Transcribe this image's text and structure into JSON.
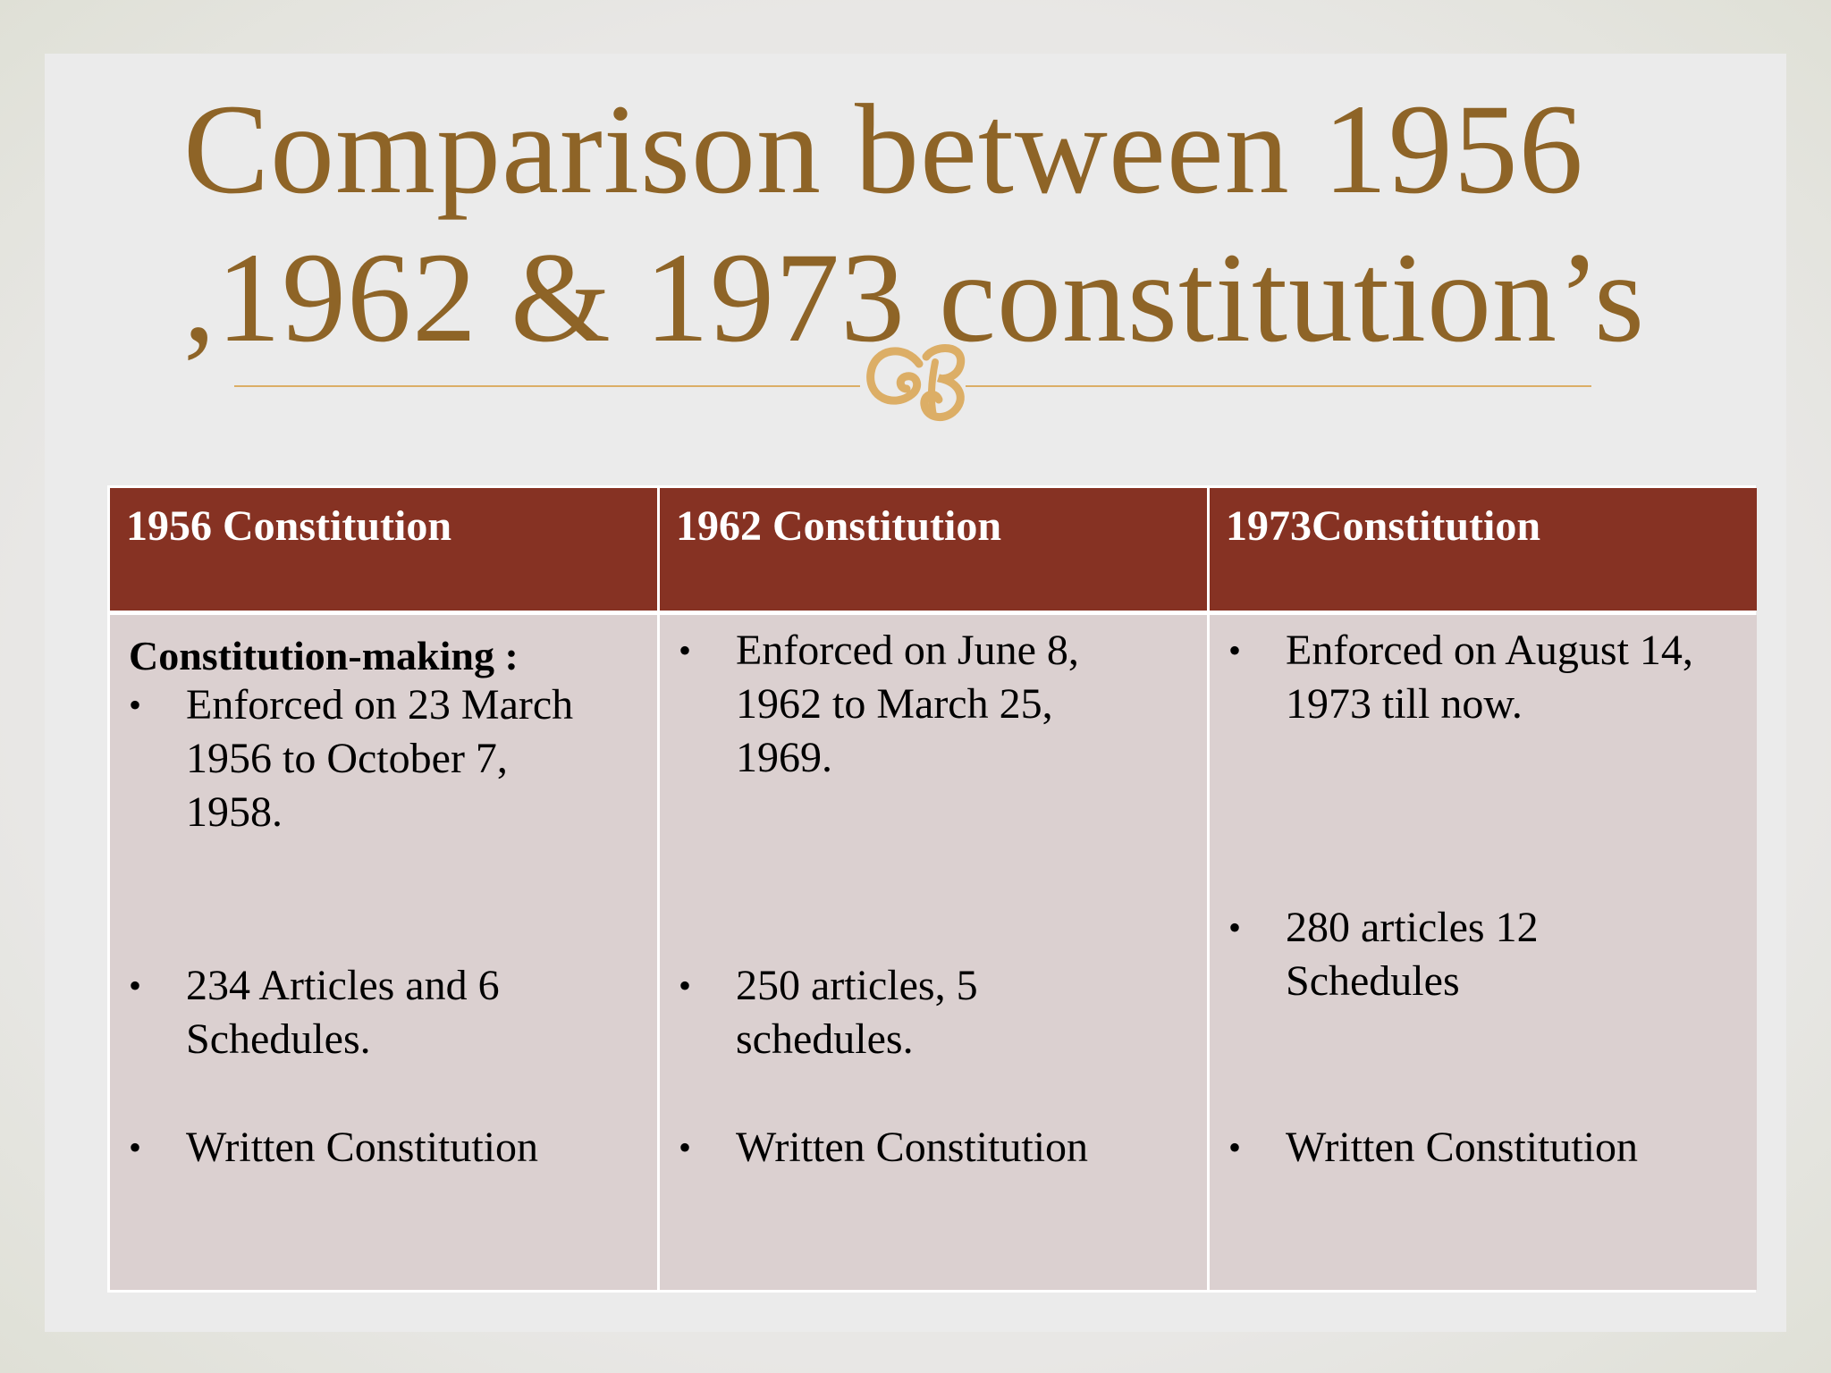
{
  "slide": {
    "title_line1": "Comparison between 1956",
    "title_line2": ",1962 & 1973 constitution’s",
    "ornament_icon": "flourish-ornament-icon",
    "colors": {
      "title": "#8e6427",
      "header_bg": "#863223",
      "cell_bg": "#dbd0d0",
      "divider": "#dcae66"
    }
  },
  "table": {
    "columns": [
      {
        "header": "1956 Constitution",
        "subheading": "Constitution-making :",
        "bullets": [
          "Enforced on 23 March\n1956 to October 7,\n1958.",
          "234 Articles and 6\nSchedules.",
          "Written Constitution"
        ]
      },
      {
        "header": "1962 Constitution",
        "bullets": [
          "Enforced on June 8,\n1962 to March 25,\n1969.",
          "250 articles, 5\nschedules.",
          "Written Constitution"
        ]
      },
      {
        "header": "1973Constitution",
        "bullets": [
          "Enforced on August 14,\n1973 till now.",
          "280 articles 12\nSchedules",
          "Written Constitution"
        ]
      }
    ],
    "bullet_symbol": "•"
  }
}
